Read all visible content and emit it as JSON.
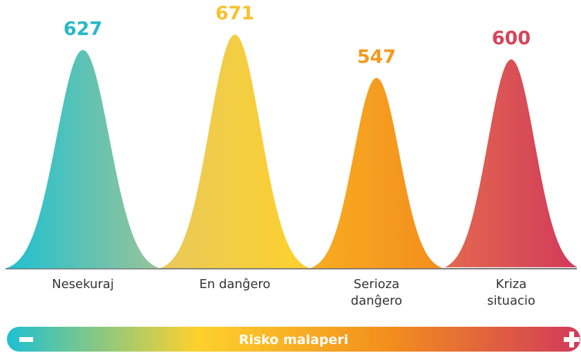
{
  "chart_data": {
    "type": "peak",
    "categories": [
      "Nesekuraj",
      "En danĝero",
      "Serioza\ndanĝero",
      "Kriza\nsituacio"
    ],
    "values": [
      627,
      671,
      547,
      600
    ],
    "colors": [
      [
        "#1ec0d2",
        "#9ac498"
      ],
      [
        "#e9c95a",
        "#fdd12c"
      ],
      [
        "#f8ac22",
        "#f38e1d"
      ],
      [
        "#e3684f",
        "#d13a5b"
      ]
    ],
    "label_colors": [
      "#27b8c8",
      "#fbc12e",
      "#f39a1f",
      "#d8455a"
    ],
    "scale_label": "Risko malaperi",
    "scale_colors": [
      "#1ec0d2",
      "#fdd12c",
      "#f38e1d",
      "#d13a5b"
    ]
  }
}
